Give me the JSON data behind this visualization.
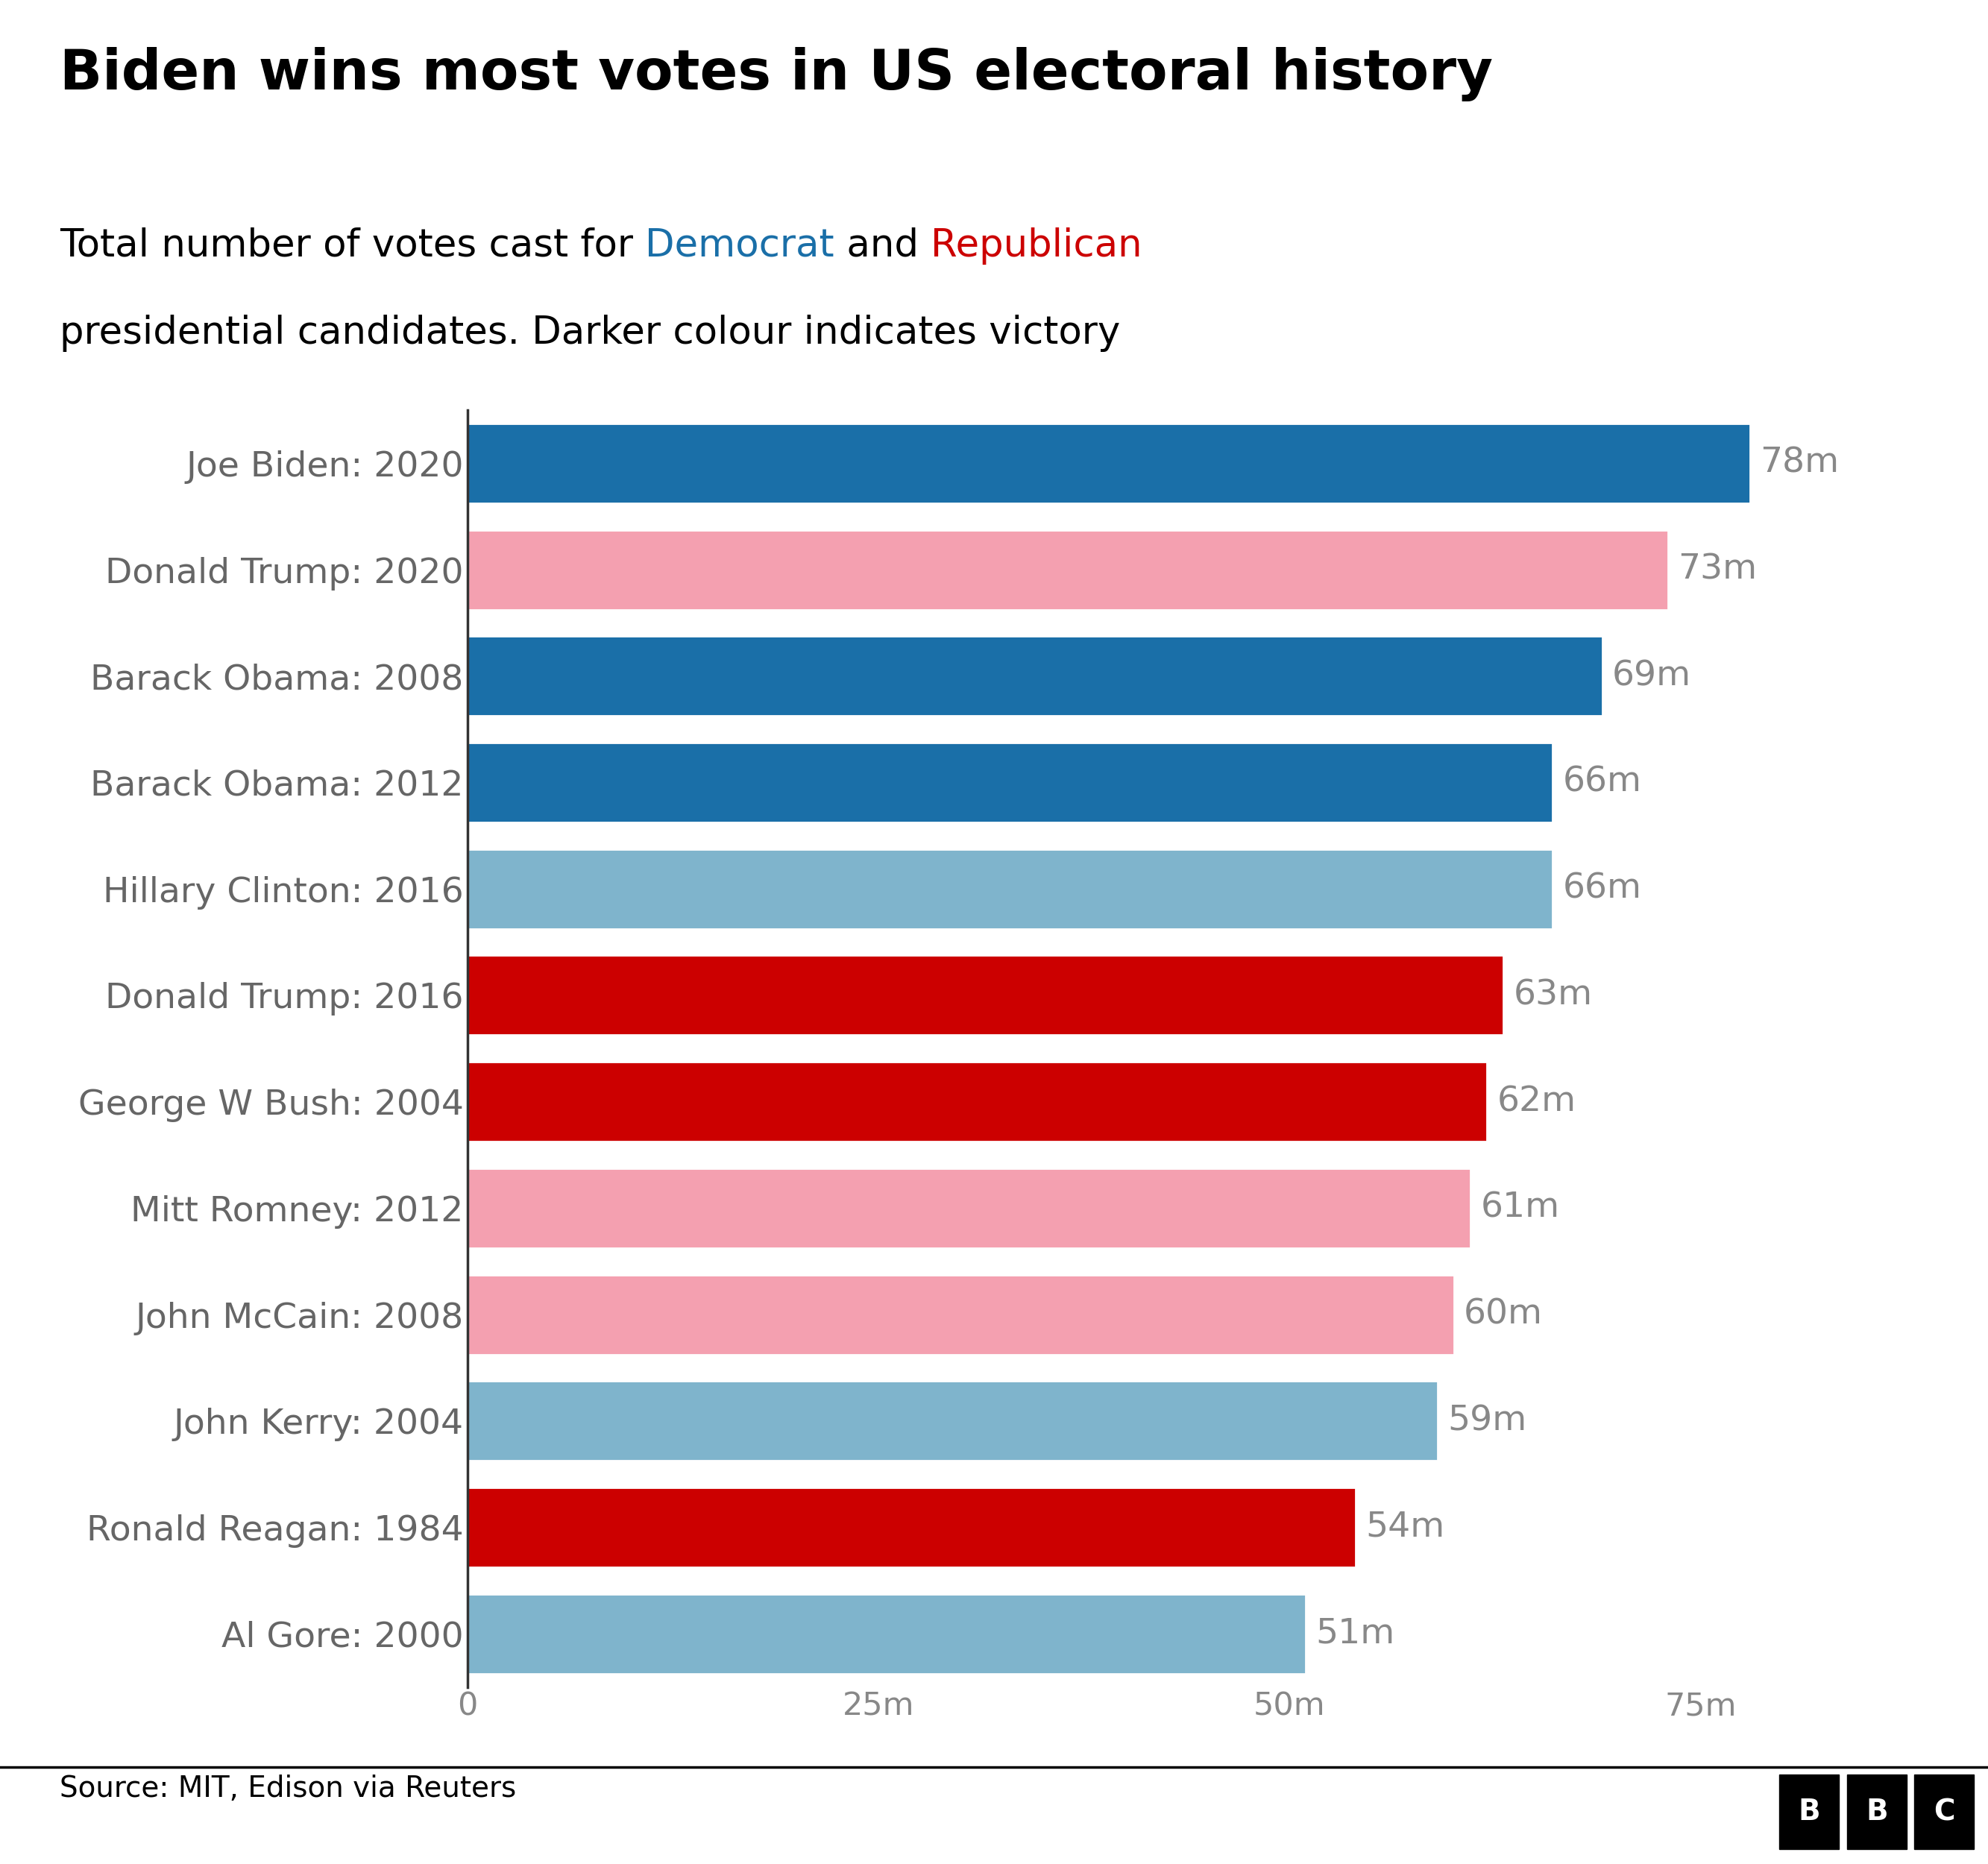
{
  "title": "Biden wins most votes in US electoral history",
  "source": "Source: MIT, Edison via Reuters",
  "candidates": [
    "Joe Biden: 2020",
    "Donald Trump: 2020",
    "Barack Obama: 2008",
    "Barack Obama: 2012",
    "Hillary Clinton: 2016",
    "Donald Trump: 2016",
    "George W Bush: 2004",
    "Mitt Romney: 2012",
    "John McCain: 2008",
    "John Kerry: 2004",
    "Ronald Reagan: 1984",
    "Al Gore: 2000"
  ],
  "values": [
    78,
    73,
    69,
    66,
    66,
    63,
    62,
    61,
    60,
    59,
    54,
    51
  ],
  "colors": [
    "#1a6fa8",
    "#f4a0b0",
    "#1a6fa8",
    "#1a6fa8",
    "#7fb4cc",
    "#cc0000",
    "#cc0000",
    "#f4a0b0",
    "#f4a0b0",
    "#7fb4cc",
    "#cc0000",
    "#7fb4cc"
  ],
  "xlim": [
    0,
    84
  ],
  "xticks": [
    0,
    25,
    50,
    75
  ],
  "xticklabels": [
    "0",
    "25m",
    "50m",
    "75m"
  ],
  "background_color": "#ffffff",
  "title_fontsize": 54,
  "subtitle_fontsize": 37,
  "bar_label_fontsize": 34,
  "ytick_fontsize": 34,
  "xtick_fontsize": 31,
  "source_fontsize": 28,
  "label_color": "#888888",
  "ytick_color": "#666666",
  "line1_parts": [
    {
      "text": "Total number of votes cast for ",
      "color": "#000000"
    },
    {
      "text": "Democrat",
      "color": "#1a6fa8"
    },
    {
      "text": " and ",
      "color": "#000000"
    },
    {
      "text": "Republican",
      "color": "#cc0000"
    }
  ],
  "line2": "presidential candidates. Darker colour indicates victory",
  "line2_color": "#000000"
}
